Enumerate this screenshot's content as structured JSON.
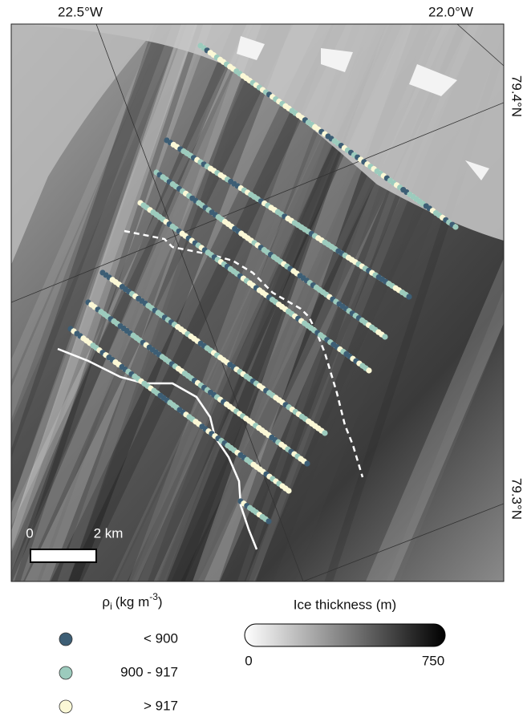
{
  "map": {
    "longitude_labels": [
      "22.5°W",
      "22.0°W"
    ],
    "latitude_labels": [
      "79.4°N",
      "79.3°N"
    ],
    "scale_bar": {
      "start": "0",
      "end": "2 km"
    }
  },
  "legend": {
    "density": {
      "symbol": "ρ",
      "subscript": "i",
      "unit": "(kg m",
      "exponent": "-3",
      "close": ")",
      "classes": [
        {
          "label": "< 900",
          "color": "#3d5e75"
        },
        {
          "label": "900 - 917",
          "color": "#9ccbbd"
        },
        {
          "label": "> 917",
          "color": "#fbf8d6"
        }
      ]
    },
    "thickness": {
      "title": "Ice thickness (m)",
      "min": 0,
      "max": 750
    }
  }
}
